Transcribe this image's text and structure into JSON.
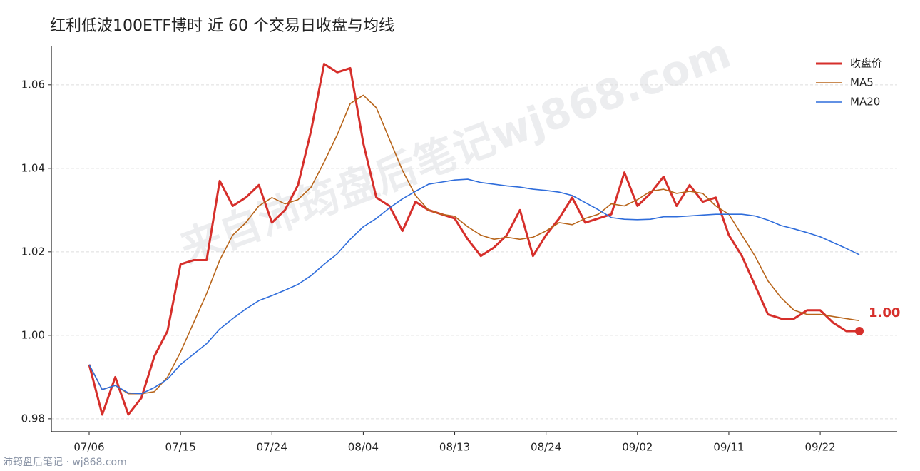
{
  "chart_data": {
    "type": "line",
    "title": "红利低波100ETF博时 近 60 个交易日收盘与均线",
    "watermark": "来自沛筠盘后笔记wj868.com",
    "footer": "沛筠盘后笔记 · wj868.com",
    "categories": [
      "07/06",
      null,
      null,
      null,
      null,
      null,
      null,
      "07/15",
      null,
      null,
      null,
      null,
      null,
      null,
      "07/24",
      null,
      null,
      null,
      null,
      null,
      null,
      "08/04",
      null,
      null,
      null,
      null,
      null,
      null,
      "08/13",
      null,
      null,
      null,
      null,
      null,
      null,
      "08/24",
      null,
      null,
      null,
      null,
      null,
      null,
      "09/02",
      null,
      null,
      null,
      null,
      null,
      null,
      "09/11",
      null,
      null,
      null,
      null,
      null,
      null,
      "09/22",
      null,
      null,
      null
    ],
    "series": [
      {
        "name": "收盘价",
        "color": "#d62f2b",
        "width": 3,
        "values": [
          0.993,
          0.981,
          0.99,
          0.981,
          0.985,
          0.995,
          1.001,
          1.017,
          1.018,
          1.018,
          1.037,
          1.031,
          1.033,
          1.036,
          1.027,
          1.03,
          1.036,
          1.049,
          1.065,
          1.063,
          1.064,
          1.046,
          1.033,
          1.031,
          1.025,
          1.032,
          1.03,
          1.029,
          1.028,
          1.023,
          1.019,
          1.021,
          1.024,
          1.03,
          1.019,
          1.024,
          1.028,
          1.033,
          1.027,
          1.028,
          1.029,
          1.039,
          1.031,
          1.034,
          1.038,
          1.031,
          1.036,
          1.032,
          1.033,
          1.024,
          1.019,
          1.012,
          1.005,
          1.004,
          1.004,
          1.006,
          1.006,
          1.003,
          1.001,
          1.001
        ],
        "value_labels": [
          null,
          null,
          null,
          null,
          null,
          null,
          null,
          null,
          null,
          null,
          null,
          null,
          null,
          null,
          null,
          null,
          null,
          null,
          null,
          null,
          null,
          null,
          null,
          null,
          null,
          null,
          null,
          null,
          null,
          null,
          null,
          null,
          null,
          null,
          null,
          null,
          null,
          null,
          null,
          null,
          null,
          null,
          null,
          null,
          null,
          null,
          null,
          null,
          null,
          null,
          null,
          null,
          null,
          null,
          null,
          null,
          null,
          null,
          null,
          "1.00"
        ]
      },
      {
        "name": "MA5",
        "color": "#b8651b",
        "width": 1.6,
        "values": [
          0.993,
          0.987,
          0.988,
          0.986,
          0.986,
          0.9865,
          0.99,
          0.996,
          1.003,
          1.01,
          1.018,
          1.024,
          1.027,
          1.031,
          1.033,
          1.0315,
          1.0325,
          1.0355,
          1.0415,
          1.048,
          1.0555,
          1.0575,
          1.0545,
          1.047,
          1.0395,
          1.0335,
          1.03,
          1.029,
          1.0285,
          1.026,
          1.024,
          1.023,
          1.0235,
          1.023,
          1.0235,
          1.025,
          1.027,
          1.0265,
          1.028,
          1.029,
          1.0315,
          1.031,
          1.0325,
          1.0345,
          1.035,
          1.034,
          1.0345,
          1.034,
          1.031,
          1.029,
          1.024,
          1.019,
          1.013,
          1.009,
          1.006,
          1.005,
          1.005,
          1.0045,
          1.004,
          1.0035
        ]
      },
      {
        "name": "MA20",
        "color": "#2f6ddb",
        "width": 1.6,
        "values": [
          0.993,
          0.987,
          0.988,
          0.9862,
          0.986,
          0.9875,
          0.9895,
          0.993,
          0.9955,
          0.998,
          1.0015,
          1.004,
          1.0063,
          1.0083,
          1.0095,
          1.0108,
          1.0122,
          1.0143,
          1.017,
          1.0195,
          1.023,
          1.026,
          1.028,
          1.0305,
          1.0327,
          1.0345,
          1.0362,
          1.0367,
          1.0372,
          1.0374,
          1.0366,
          1.0362,
          1.0358,
          1.0355,
          1.035,
          1.0347,
          1.0343,
          1.0335,
          1.0318,
          1.0301,
          1.0282,
          1.0278,
          1.0277,
          1.0278,
          1.0284,
          1.0284,
          1.0286,
          1.0288,
          1.029,
          1.029,
          1.029,
          1.0286,
          1.0276,
          1.0263,
          1.0255,
          1.0246,
          1.0236,
          1.0222,
          1.0208,
          1.0193
        ]
      }
    ],
    "ylim": [
      0.9769,
      1.0692
    ],
    "yticks": [
      {
        "value": 0.98,
        "label": "0.98"
      },
      {
        "value": 1.0,
        "label": "1.00"
      },
      {
        "value": 1.02,
        "label": "1.02"
      },
      {
        "value": 1.04,
        "label": "1.04"
      },
      {
        "value": 1.06,
        "label": "1.06"
      }
    ],
    "grid": true,
    "legend": "upper right"
  }
}
